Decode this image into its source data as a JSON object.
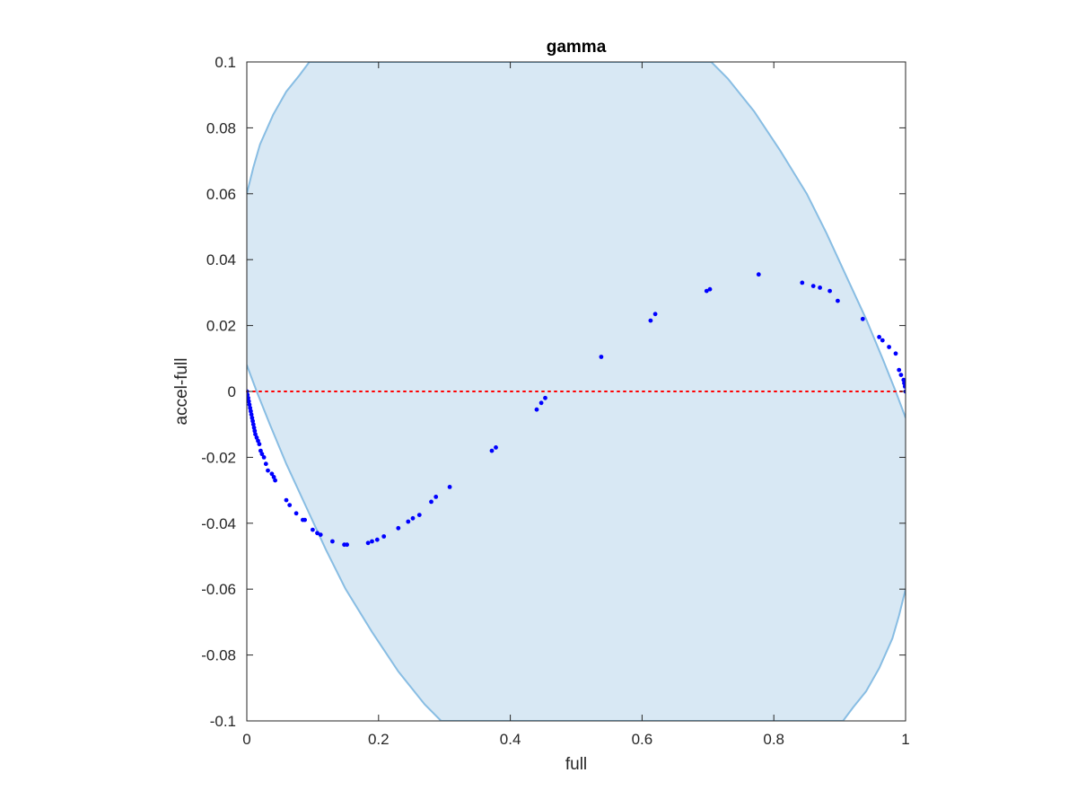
{
  "chart_data": {
    "type": "scatter",
    "title": "gamma",
    "xlabel": "full",
    "ylabel": "accel-full",
    "xlim": [
      0,
      1
    ],
    "ylim": [
      -0.1,
      0.1
    ],
    "xticks": [
      0,
      0.2,
      0.4,
      0.6,
      0.8,
      1
    ],
    "xtick_labels": [
      "0",
      "0.2",
      "0.4",
      "0.6",
      "0.8",
      "1"
    ],
    "yticks": [
      -0.1,
      -0.08,
      -0.06,
      -0.04,
      -0.02,
      0,
      0.02,
      0.04,
      0.06,
      0.08,
      0.1
    ],
    "ytick_labels": [
      "-0.1",
      "-0.08",
      "-0.06",
      "-0.04",
      "-0.02",
      "0",
      "0.02",
      "0.04",
      "0.06",
      "0.08",
      "0.1"
    ],
    "grid": false,
    "colors": {
      "points": "#0000ff",
      "region_fill": "#d8e8f4",
      "region_edge": "#88bde3",
      "reference_line": "#ff0000",
      "axes": "#262626"
    },
    "reference_line": {
      "y": 0,
      "style": "dotted"
    },
    "confidence_region": {
      "description_shape": "ellipse-like region centered near (0.5, 0)",
      "upper_boundary": {
        "x": [
          0,
          0.05,
          0.1,
          0.2,
          0.3,
          0.4,
          0.5,
          0.6,
          0.7,
          0.7
        ],
        "y": [
          0.06,
          0.082,
          0.1,
          0.1,
          0.1,
          0.1,
          0.1,
          0.1,
          0.1,
          0.1
        ]
      },
      "outline_top": [
        [
          0,
          0.06
        ],
        [
          0.01,
          0.068
        ],
        [
          0.02,
          0.075
        ],
        [
          0.04,
          0.084
        ],
        [
          0.06,
          0.091
        ],
        [
          0.08,
          0.096
        ],
        [
          0.095,
          0.1
        ],
        [
          0.705,
          0.1
        ],
        [
          0.73,
          0.095
        ],
        [
          0.77,
          0.085
        ],
        [
          0.81,
          0.073
        ],
        [
          0.85,
          0.06
        ],
        [
          0.88,
          0.048
        ],
        [
          0.91,
          0.035
        ],
        [
          0.94,
          0.022
        ],
        [
          0.965,
          0.01
        ],
        [
          0.985,
          0.0
        ],
        [
          1,
          -0.008
        ]
      ],
      "outline_bottom": [
        [
          0,
          0.008
        ],
        [
          0.015,
          -0.0
        ],
        [
          0.035,
          -0.01
        ],
        [
          0.06,
          -0.022
        ],
        [
          0.09,
          -0.035
        ],
        [
          0.12,
          -0.048
        ],
        [
          0.15,
          -0.06
        ],
        [
          0.19,
          -0.073
        ],
        [
          0.23,
          -0.085
        ],
        [
          0.27,
          -0.095
        ],
        [
          0.295,
          -0.1
        ],
        [
          0.905,
          -0.1
        ],
        [
          0.92,
          -0.096
        ],
        [
          0.94,
          -0.091
        ],
        [
          0.96,
          -0.084
        ],
        [
          0.98,
          -0.075
        ],
        [
          0.99,
          -0.068
        ],
        [
          1,
          -0.06
        ]
      ]
    },
    "series": [
      {
        "x": [
          0.0,
          0.001,
          0.002,
          0.003,
          0.004,
          0.005,
          0.006,
          0.007,
          0.008,
          0.009,
          0.01,
          0.011,
          0.012,
          0.013,
          0.015,
          0.017,
          0.019,
          0.021,
          0.023,
          0.026,
          0.029,
          0.032,
          0.038,
          0.041,
          0.043,
          0.06,
          0.065,
          0.075,
          0.085,
          0.088,
          0.1,
          0.107,
          0.112,
          0.13,
          0.148,
          0.152,
          0.184,
          0.19,
          0.198,
          0.208,
          0.23,
          0.245,
          0.252,
          0.262,
          0.28,
          0.287,
          0.308,
          0.372,
          0.378,
          0.44,
          0.447,
          0.453,
          0.538,
          0.613,
          0.62,
          0.698,
          0.703,
          0.777,
          0.843,
          0.86,
          0.87,
          0.885,
          0.897,
          0.935,
          0.96,
          0.965,
          0.975,
          0.985,
          0.99,
          0.993,
          0.997,
          0.998,
          0.999,
          1.0
        ],
        "y": [
          0.0,
          -0.001,
          -0.002,
          -0.003,
          -0.004,
          -0.005,
          -0.006,
          -0.007,
          -0.008,
          -0.009,
          -0.01,
          -0.011,
          -0.012,
          -0.013,
          -0.014,
          -0.015,
          -0.016,
          -0.018,
          -0.019,
          -0.02,
          -0.022,
          -0.024,
          -0.025,
          -0.026,
          -0.027,
          -0.033,
          -0.0345,
          -0.037,
          -0.039,
          -0.039,
          -0.042,
          -0.043,
          -0.0435,
          -0.0455,
          -0.0465,
          -0.0465,
          -0.046,
          -0.0455,
          -0.045,
          -0.044,
          -0.0415,
          -0.0395,
          -0.0385,
          -0.0375,
          -0.0335,
          -0.032,
          -0.029,
          -0.018,
          -0.017,
          -0.0055,
          -0.0035,
          -0.002,
          0.0105,
          0.0215,
          0.0235,
          0.0305,
          0.031,
          0.0355,
          0.033,
          0.032,
          0.0315,
          0.0305,
          0.0275,
          0.022,
          0.0165,
          0.0155,
          0.0135,
          0.0115,
          0.0065,
          0.005,
          0.0035,
          0.0025,
          0.0015,
          0.0
        ]
      }
    ]
  }
}
